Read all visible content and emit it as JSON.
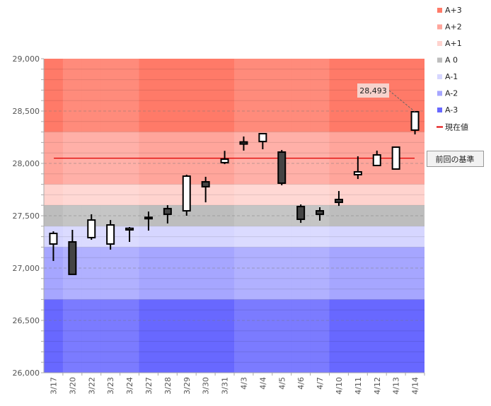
{
  "chart_data": {
    "type": "candlestick",
    "title": "",
    "ylim": [
      26000,
      29000
    ],
    "yticks": [
      "26,000",
      "26,500",
      "27,000",
      "27,500",
      "28,000",
      "28,500",
      "29,000"
    ],
    "ytick_values": [
      26000,
      26500,
      27000,
      27500,
      28000,
      28500,
      29000
    ],
    "categories": [
      "3/17",
      "3/20",
      "3/22",
      "3/23",
      "3/24",
      "3/27",
      "3/28",
      "3/29",
      "3/30",
      "3/31",
      "4/3",
      "4/4",
      "4/5",
      "4/6",
      "4/7",
      "4/10",
      "4/11",
      "4/12",
      "4/13",
      "4/14"
    ],
    "week_shade": [
      1,
      0,
      0,
      0,
      0,
      1,
      1,
      1,
      1,
      1,
      0,
      0,
      0,
      0,
      0,
      1,
      1,
      1,
      1,
      1
    ],
    "ohlc": [
      [
        27230,
        27351,
        27068,
        27331
      ],
      [
        27250,
        27365,
        26939,
        26940
      ],
      [
        27291,
        27514,
        27270,
        27459
      ],
      [
        27230,
        27459,
        27176,
        27412
      ],
      [
        27365,
        27392,
        27250,
        27380
      ],
      [
        27475,
        27540,
        27358,
        27485
      ],
      [
        27568,
        27601,
        27426,
        27514
      ],
      [
        27547,
        27892,
        27500,
        27878
      ],
      [
        27824,
        27872,
        27628,
        27777
      ],
      [
        28007,
        28120,
        27993,
        28040
      ],
      [
        28205,
        28257,
        28122,
        28185
      ],
      [
        28209,
        28284,
        28135,
        28284
      ],
      [
        28108,
        28128,
        27791,
        27811
      ],
      [
        27588,
        27608,
        27432,
        27466
      ],
      [
        27547,
        27581,
        27453,
        27514
      ],
      [
        27655,
        27736,
        27594,
        27628
      ],
      [
        27892,
        28068,
        27851,
        27919
      ],
      [
        27980,
        28122,
        27980,
        28081
      ],
      [
        27946,
        28155,
        27946,
        28155
      ],
      [
        28318,
        28493,
        28277,
        28493
      ]
    ],
    "bands": [
      {
        "name": "A+3",
        "from": 28300,
        "to": 29000,
        "color": "#ff7a68"
      },
      {
        "name": "A+2",
        "from": 27800,
        "to": 28300,
        "color": "#ffa59b"
      },
      {
        "name": "A+1",
        "from": 27600,
        "to": 27800,
        "color": "#ffd3ce"
      },
      {
        "name": "A 0",
        "from": 27400,
        "to": 27600,
        "color": "#bdbdbd"
      },
      {
        "name": "A-1",
        "from": 27200,
        "to": 27400,
        "color": "#d6d6ff"
      },
      {
        "name": "A-2",
        "from": 26700,
        "to": 27200,
        "color": "#a6a6ff"
      },
      {
        "name": "A-3",
        "from": 26000,
        "to": 26700,
        "color": "#6868ff"
      }
    ],
    "current_value": {
      "label": "現在値",
      "value": 28050,
      "color": "#e00000"
    },
    "previous_reference_label": "前回の基準",
    "last_price_label": "28,493",
    "legend_position": "top-right"
  }
}
